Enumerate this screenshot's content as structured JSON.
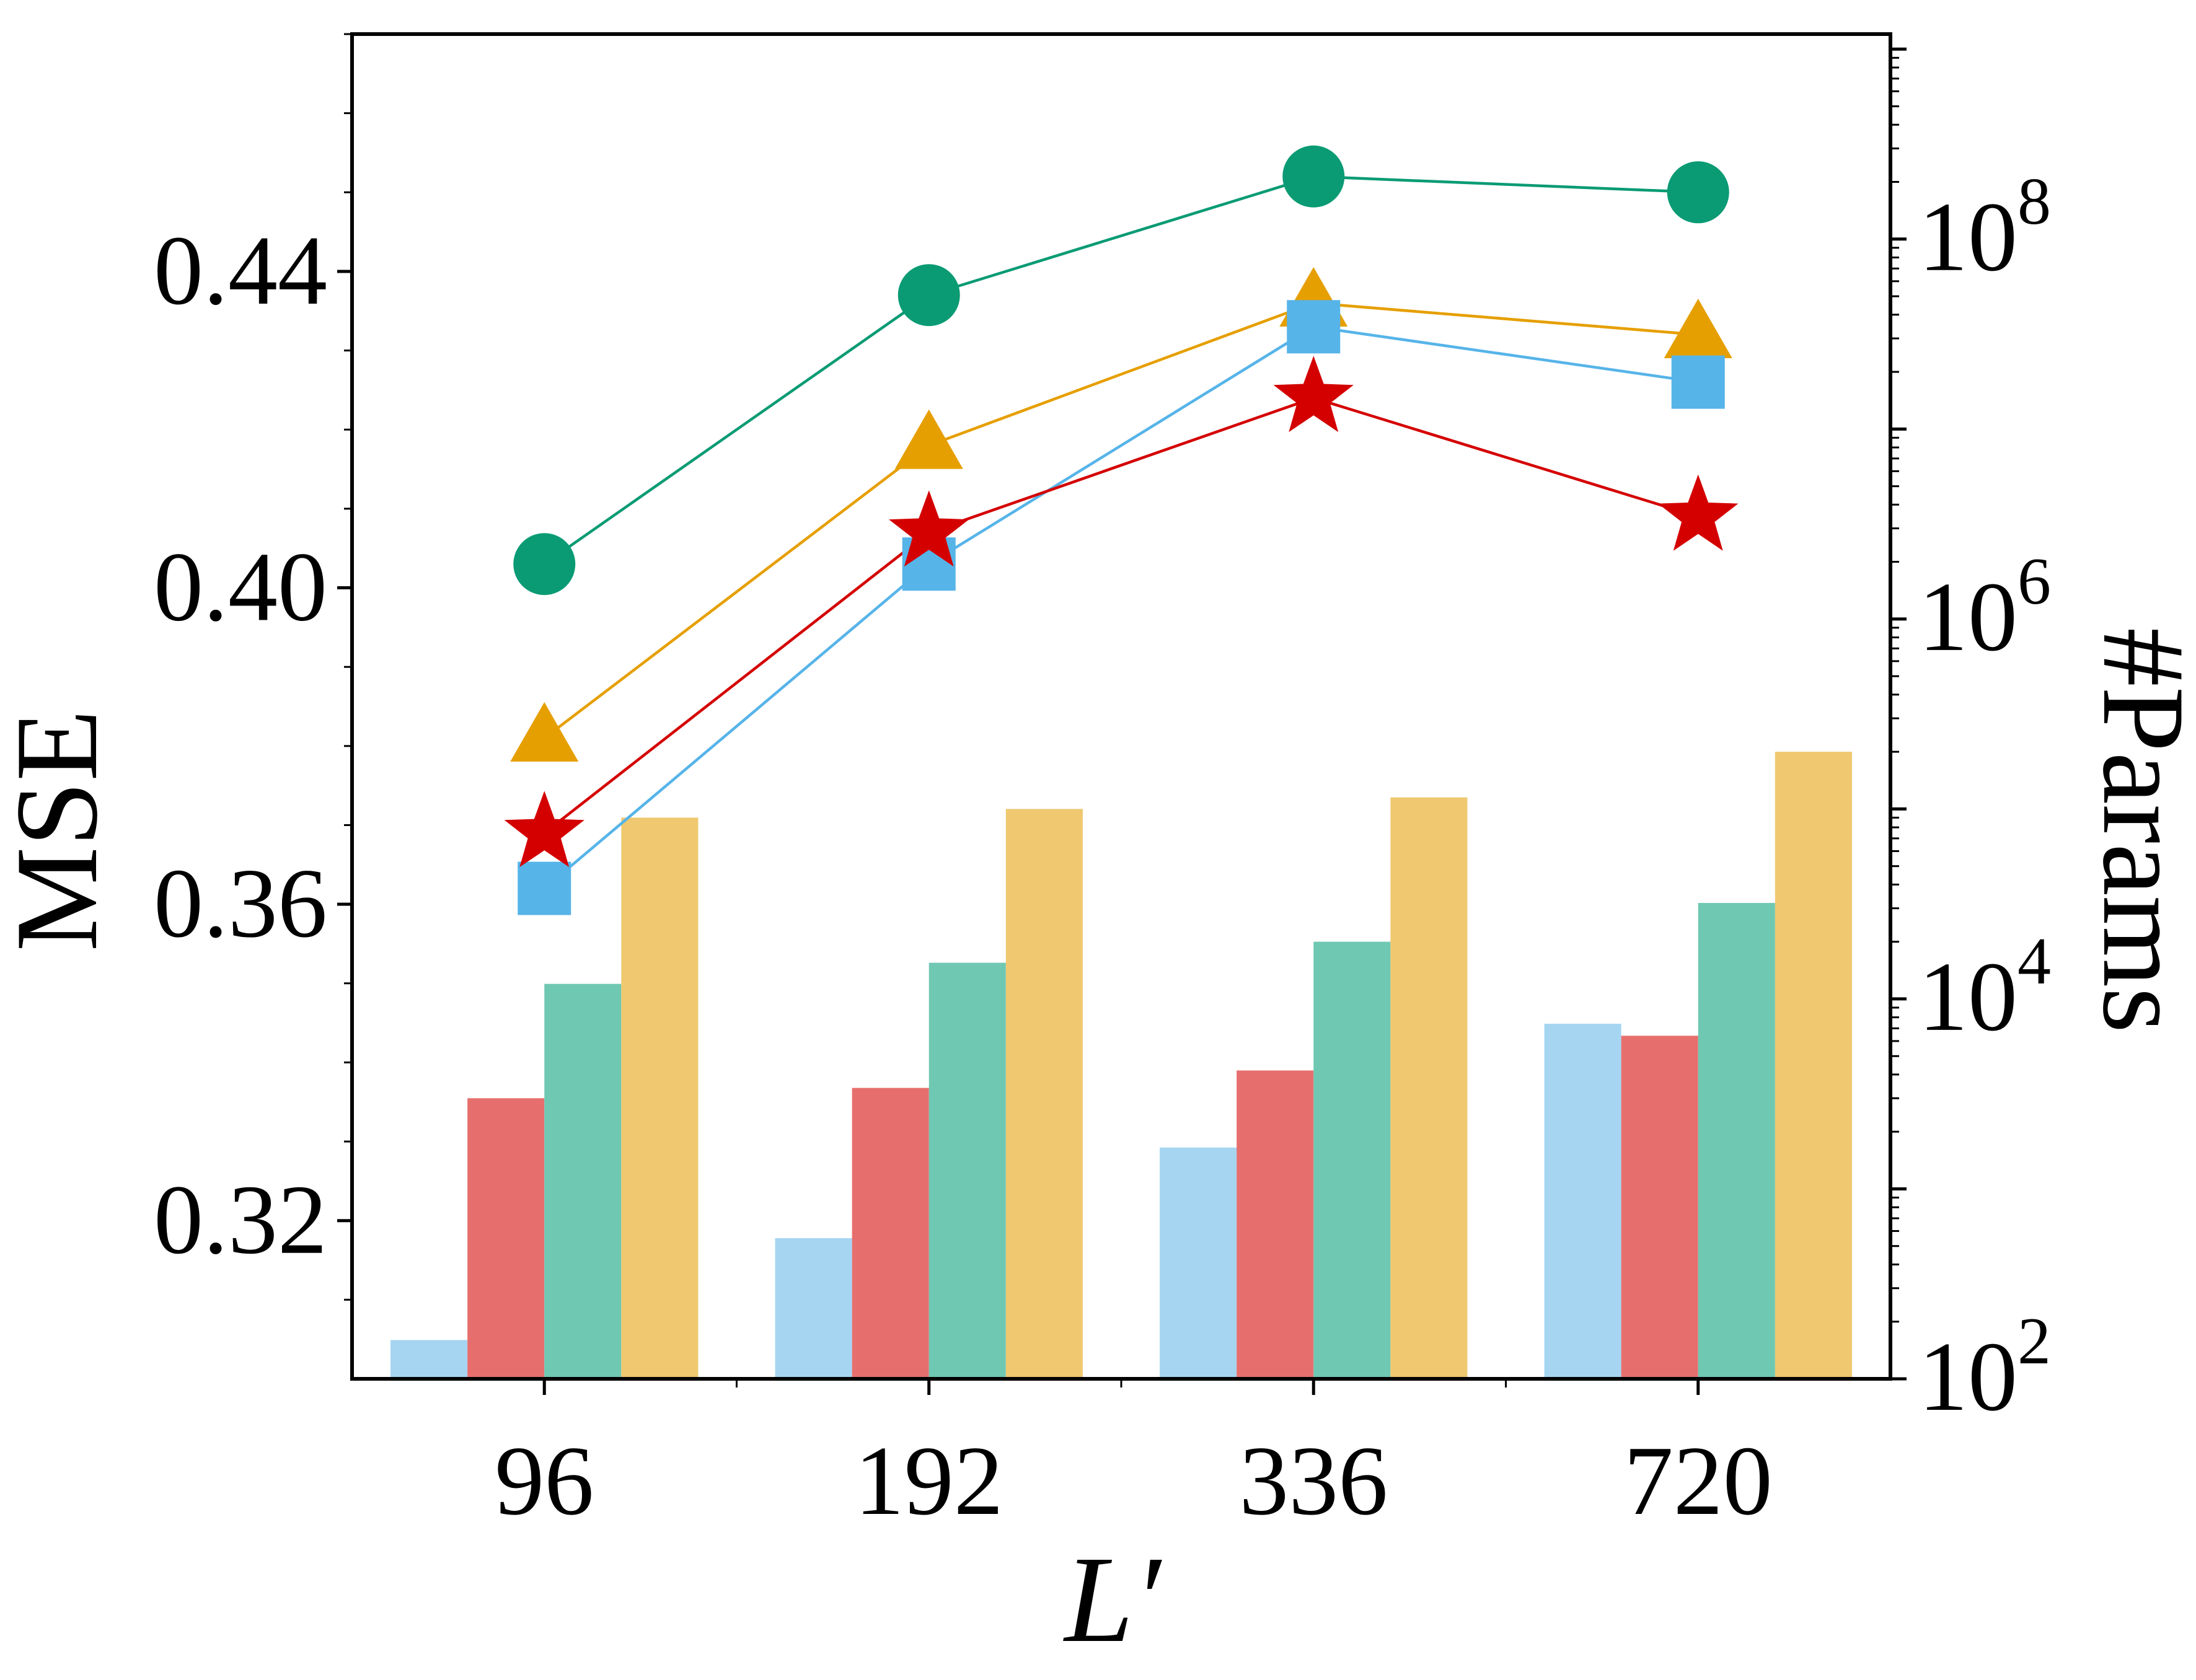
{
  "chart_data": {
    "type": "bar+line",
    "categories": [
      "96",
      "192",
      "336",
      "720"
    ],
    "xlabel": "L′",
    "ylabel_left": "MSE",
    "ylabel_right": "#Params",
    "y_left": {
      "lim": [
        0.3,
        0.47
      ],
      "ticks": [
        0.32,
        0.36,
        0.4,
        0.44
      ],
      "tick_labels": [
        "0.32",
        "0.36",
        "0.40",
        "0.44"
      ]
    },
    "y_right": {
      "scale": "log",
      "lim": [
        100,
        1200000000.0
      ],
      "major_ticks": [
        100,
        10000,
        1000000,
        100000000
      ],
      "tick_labels": [
        {
          "base": "10",
          "exp": "2"
        },
        {
          "base": "10",
          "exp": "4"
        },
        {
          "base": "10",
          "exp": "6"
        },
        {
          "base": "10",
          "exp": "8"
        }
      ]
    },
    "line_series": [
      {
        "color": "#0a9b74",
        "marker": "circle",
        "values": [
          0.403,
          0.437,
          0.452,
          0.45
        ]
      },
      {
        "color": "#e69f00",
        "marker": "triangle",
        "values": [
          0.381,
          0.418,
          0.436,
          0.432
        ]
      },
      {
        "color": "#56b4e9",
        "marker": "square",
        "values": [
          0.362,
          0.403,
          0.433,
          0.426
        ]
      },
      {
        "color": "#d40000",
        "marker": "star",
        "values": [
          0.369,
          0.407,
          0.424,
          0.409
        ]
      }
    ],
    "bar_series": [
      {
        "color": "#a6d5f2",
        "values": [
          160,
          550,
          1650,
          7400
        ]
      },
      {
        "color": "#e66f6e",
        "values": [
          3000,
          3400,
          4200,
          6400
        ]
      },
      {
        "color": "#6fc8b2",
        "values": [
          12000,
          15500,
          20000,
          32000
        ]
      },
      {
        "color": "#efc870",
        "values": [
          90000,
          100000,
          115000,
          200000
        ]
      }
    ]
  }
}
